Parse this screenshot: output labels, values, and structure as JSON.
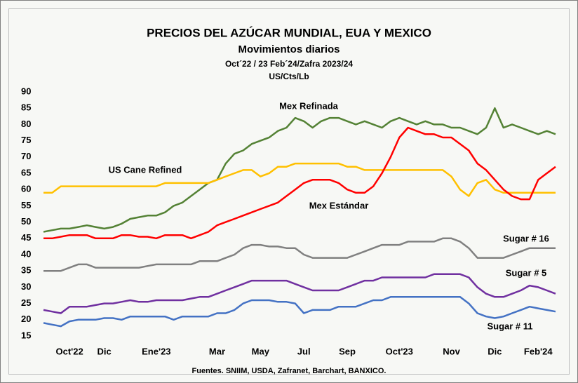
{
  "chart_data": {
    "type": "line",
    "title": "PRECIOS DEL AZÚCAR MUNDIAL, EUA Y MEXICO",
    "subtitle": "Movimientos diarios",
    "period": "Oct´22 /  23 Feb´24/Zafra 2023/24",
    "units": "US/Cts/Lb",
    "source": "Fuentes. SNIIM, USDA, Zafranet, Barchart, BANXICO.",
    "categories": [
      null,
      null,
      null,
      "Oct'22",
      null,
      null,
      null,
      "Dic",
      null,
      null,
      null,
      null,
      null,
      "Ene'23",
      null,
      null,
      null,
      null,
      null,
      null,
      "Mar",
      null,
      null,
      null,
      null,
      "May",
      null,
      null,
      null,
      null,
      "Jul",
      null,
      null,
      null,
      null,
      "Sep",
      null,
      null,
      null,
      null,
      null,
      "Oct'23",
      null,
      null,
      null,
      null,
      null,
      "Nov",
      null,
      null,
      null,
      null,
      "Dic",
      null,
      null,
      null,
      null,
      "Feb'24",
      null,
      null
    ],
    "ylim": [
      15,
      90
    ],
    "yticks": [
      15,
      20,
      25,
      30,
      35,
      40,
      45,
      50,
      55,
      60,
      65,
      70,
      75,
      80,
      85,
      90
    ],
    "grid": false,
    "series": [
      {
        "name": "Mex Refinada",
        "color": "#548235",
        "values": [
          47,
          47.5,
          48,
          48,
          48.5,
          49,
          48.5,
          48,
          48.5,
          49.5,
          51,
          51.5,
          52,
          52,
          53,
          55,
          56,
          58,
          60,
          62,
          63,
          68,
          71,
          72,
          74,
          75,
          76,
          78,
          79,
          82,
          81,
          79,
          81,
          82,
          82,
          81,
          80,
          81,
          80,
          79,
          81,
          82,
          81,
          80,
          81,
          80,
          80,
          79,
          79,
          78,
          77,
          79,
          85,
          79,
          80,
          79,
          78,
          77,
          78,
          77
        ]
      },
      {
        "name": "US Cane Refined",
        "color": "#ffc000",
        "values": [
          59,
          59,
          61,
          61,
          61,
          61,
          61,
          61,
          61,
          61,
          61,
          61,
          61,
          61,
          62,
          62,
          62,
          62,
          62,
          62,
          63,
          64,
          65,
          66,
          66,
          64,
          65,
          67,
          67,
          68,
          68,
          68,
          68,
          68,
          68,
          67,
          67,
          66,
          66,
          66,
          66,
          66,
          66,
          66,
          66,
          66,
          66,
          64,
          60,
          58,
          62,
          63,
          60,
          59,
          59,
          59,
          59,
          59,
          59,
          59
        ]
      },
      {
        "name": "Mex Estándar",
        "color": "#ff0000",
        "values": [
          45,
          45,
          45.5,
          46,
          46,
          46,
          45,
          45,
          45,
          46,
          46,
          45.5,
          45.5,
          45,
          46,
          46,
          46,
          45,
          46,
          47,
          49,
          50,
          51,
          52,
          53,
          54,
          55,
          56,
          58,
          60,
          62,
          63,
          63,
          63,
          62,
          60,
          59,
          59,
          61,
          65,
          70,
          76,
          79,
          78,
          77,
          77,
          76,
          76,
          74,
          72,
          68,
          66,
          63,
          60,
          58,
          57,
          57,
          63,
          65,
          67
        ]
      },
      {
        "name": "Sugar # 16",
        "color": "#808080",
        "values": [
          35,
          35,
          35,
          36,
          37,
          37,
          36,
          36,
          36,
          36,
          36,
          36,
          36.5,
          37,
          37,
          37,
          37,
          37,
          38,
          38,
          38,
          39,
          40,
          42,
          43,
          43,
          42.5,
          42.5,
          42,
          42,
          40,
          39,
          39,
          39,
          39,
          39,
          40,
          41,
          42,
          43,
          43,
          43,
          44,
          44,
          44,
          44,
          45,
          45,
          44,
          42,
          39,
          39,
          39,
          39,
          40,
          41,
          42,
          42,
          42,
          42
        ]
      },
      {
        "name": "Sugar # 5",
        "color": "#7030a0",
        "values": [
          23,
          22.5,
          22,
          24,
          24,
          24,
          24.5,
          25,
          25,
          25.5,
          26,
          25.5,
          25.5,
          26,
          26,
          26,
          26,
          26.5,
          27,
          27,
          28,
          29,
          30,
          31,
          32,
          32,
          32,
          32,
          32,
          31,
          30,
          29,
          29,
          29,
          29,
          30,
          31,
          32,
          32,
          33,
          33,
          33,
          33,
          33,
          33,
          34,
          34,
          34,
          34,
          33,
          30,
          28,
          27,
          27,
          28,
          29,
          30.5,
          30,
          29,
          28
        ]
      },
      {
        "name": "Sugar # 11",
        "color": "#4472c4",
        "values": [
          19,
          18.5,
          18,
          19.5,
          20,
          20,
          20,
          20.5,
          20.5,
          20,
          21,
          21,
          21,
          21,
          21,
          20,
          21,
          21,
          21,
          21,
          22,
          22,
          23,
          25,
          26,
          26,
          26,
          25.5,
          25.5,
          25,
          22,
          23,
          23,
          23,
          24,
          24,
          24,
          25,
          26,
          26,
          27,
          27,
          27,
          27,
          27,
          27,
          27,
          27,
          27,
          25,
          22,
          21,
          20.5,
          21,
          22,
          23,
          24,
          23.5,
          23,
          22.5
        ]
      }
    ]
  }
}
